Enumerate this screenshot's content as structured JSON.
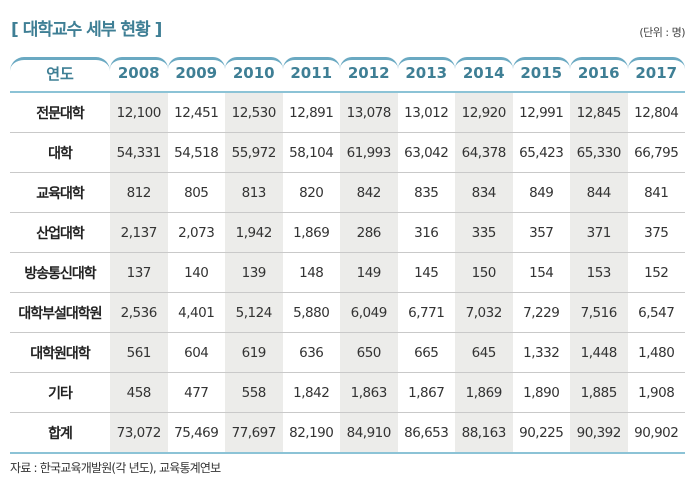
{
  "title": "[ 대학교수 세부 현황 ]",
  "unit": "(단위 : 명)",
  "columns": [
    "연도",
    "2008",
    "2009",
    "2010",
    "2011",
    "2012",
    "2013",
    "2014",
    "2015",
    "2016",
    "2017"
  ],
  "rows": [
    {
      "label": "전문대학",
      "values": [
        "12,100",
        "12,451",
        "12,530",
        "12,891",
        "13,078",
        "13,012",
        "12,920",
        "12,991",
        "12,845",
        "12,804"
      ]
    },
    {
      "label": "대학",
      "values": [
        "54,331",
        "54,518",
        "55,972",
        "58,104",
        "61,993",
        "63,042",
        "64,378",
        "65,423",
        "65,330",
        "66,795"
      ]
    },
    {
      "label": "교육대학",
      "values": [
        "812",
        "805",
        "813",
        "820",
        "842",
        "835",
        "834",
        "849",
        "844",
        "841"
      ]
    },
    {
      "label": "산업대학",
      "values": [
        "2,137",
        "2,073",
        "1,942",
        "1,869",
        "286",
        "316",
        "335",
        "357",
        "371",
        "375"
      ]
    },
    {
      "label": "방송통신대학",
      "values": [
        "137",
        "140",
        "139",
        "148",
        "149",
        "145",
        "150",
        "154",
        "153",
        "152"
      ]
    },
    {
      "label": "대학부설대학원",
      "values": [
        "2,536",
        "4,401",
        "5,124",
        "5,880",
        "6,049",
        "6,771",
        "7,032",
        "7,229",
        "7,516",
        "6,547"
      ]
    },
    {
      "label": "대학원대학",
      "values": [
        "561",
        "604",
        "619",
        "636",
        "650",
        "665",
        "645",
        "1,332",
        "1,448",
        "1,480"
      ]
    },
    {
      "label": "기타",
      "values": [
        "458",
        "477",
        "558",
        "1,842",
        "1,863",
        "1,867",
        "1,869",
        "1,890",
        "1,885",
        "1,908"
      ]
    },
    {
      "label": "합계",
      "values": [
        "73,072",
        "75,469",
        "77,697",
        "82,190",
        "84,910",
        "86,653",
        "88,163",
        "90,225",
        "90,392",
        "90,902"
      ]
    }
  ],
  "source": "자료 : 한국교육개발원(각 년도), 교육통계연보"
}
